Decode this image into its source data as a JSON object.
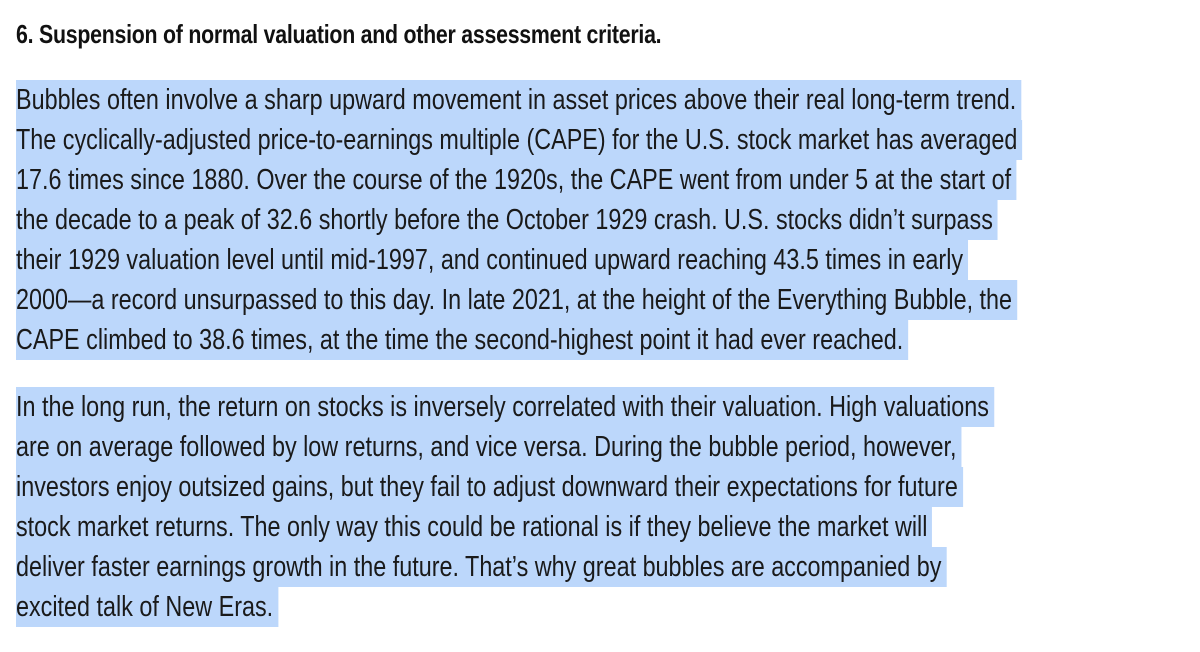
{
  "section": {
    "heading": "6. Suspension of normal valuation and other assessment criteria.",
    "paragraphs": [
      {
        "lines": [
          "Bubbles often involve a sharp upward movement in asset prices above their real long-term trend.",
          "The cyclically-adjusted price-to-earnings multiple (CAPE) for the U.S. stock market has averaged",
          "17.6 times since 1880. Over the course of the 1920s, the CAPE went from under 5 at the start of",
          "the decade to a peak of 32.6 shortly before the October 1929 crash. U.S. stocks didn’t surpass",
          "their 1929 valuation level until mid-1997, and continued upward reaching 43.5 times in early",
          "2000—a record unsurpassed to this day. In late 2021, at the height of the Everything Bubble, the",
          "CAPE climbed to 38.6 times, at the time the second-highest point it had ever reached."
        ]
      },
      {
        "lines": [
          "In the long run, the return on stocks is inversely correlated with their valuation. High valuations",
          "are on average followed by low returns, and vice versa. During the bubble period, however,",
          "investors enjoy outsized gains, but they fail to adjust downward their expectations for future",
          "stock market returns. The only way this could be rational is if they believe the market will",
          "deliver faster earnings growth in the future. That’s why great bubbles are accompanied by",
          "excited talk of New Eras."
        ]
      }
    ]
  },
  "colors": {
    "selection_highlight": "#bcd7fb",
    "text": "#1a1a1a",
    "background": "#ffffff"
  }
}
